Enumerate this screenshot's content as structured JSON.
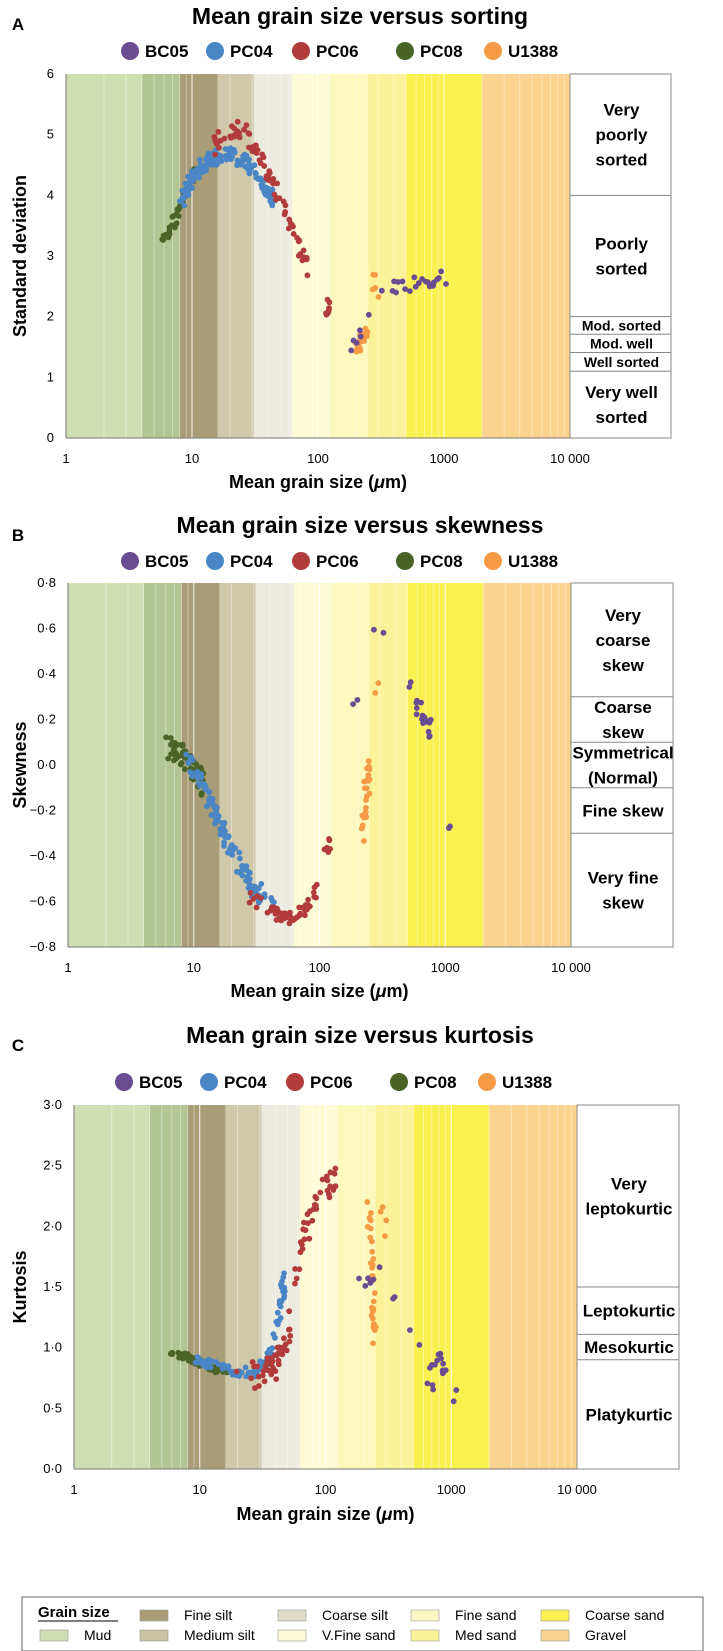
{
  "series_colors": {
    "BC05": "#6a4c93",
    "PC04": "#4a86c5",
    "PC06": "#b23b3b",
    "PC08": "#4a6428",
    "U1388": "#f59a45"
  },
  "legend_series": [
    "BC05",
    "PC04",
    "PC06",
    "PC08",
    "U1388"
  ],
  "x_axis": {
    "label_prefix": "Mean grain size (",
    "label_mu": "μ",
    "label_suffix": "m)",
    "ticks": [
      "1",
      "10",
      "100",
      "1000",
      "10 000"
    ]
  },
  "band_colors": [
    "#d0dfb2",
    "#b3c592",
    "#a89d76",
    "#cfc8ab",
    "#edebe0",
    "#fdfbd5",
    "#fcf8be",
    "#fbf29a",
    "#faf050",
    "#fad38f"
  ],
  "chart_data": [
    {
      "type": "scatter",
      "panel": "A",
      "title": "Mean grain size versus sorting",
      "xlabel": "Mean grain size (μm)",
      "ylabel": "Standard deviation",
      "x_scale": "log",
      "xlim": [
        1,
        10000
      ],
      "ylim": [
        0,
        6
      ],
      "y_ticks": [
        "0",
        "1",
        "2",
        "3",
        "4",
        "5",
        "6"
      ],
      "classes": [
        {
          "name": "Very poorly sorted",
          "lines": [
            "Very",
            "poorly",
            "sorted"
          ],
          "from": 4,
          "to": 6
        },
        {
          "name": "Poorly sorted",
          "lines": [
            "Poorly",
            "sorted"
          ],
          "from": 2,
          "to": 4
        },
        {
          "name": "Mod. sorted",
          "lines": [
            "Mod. sorted"
          ],
          "from": 1.71,
          "to": 2
        },
        {
          "name": "Mod. well",
          "lines": [
            "Mod. well"
          ],
          "from": 1.41,
          "to": 1.71
        },
        {
          "name": "Well sorted",
          "lines": [
            "Well sorted"
          ],
          "from": 1.1,
          "to": 1.41
        },
        {
          "name": "Very well sorted",
          "lines": [
            "Very well",
            "sorted"
          ],
          "from": 0,
          "to": 1.1
        }
      ],
      "series": [
        {
          "name": "PC08",
          "trend": [
            [
              6,
              3.3
            ],
            [
              7,
              3.5
            ],
            [
              8,
              3.8
            ],
            [
              9,
              4.05
            ],
            [
              10,
              4.3
            ],
            [
              11,
              4.4
            ]
          ],
          "spread": 0.08,
          "n": 55
        },
        {
          "name": "PC04",
          "trend": [
            [
              8,
              3.8
            ],
            [
              10,
              4.3
            ],
            [
              13,
              4.55
            ],
            [
              18,
              4.7
            ],
            [
              25,
              4.6
            ],
            [
              35,
              4.2
            ],
            [
              45,
              3.9
            ]
          ],
          "spread": 0.12,
          "n": 150
        },
        {
          "name": "PC06",
          "trend": [
            [
              15,
              4.8
            ],
            [
              20,
              5.1
            ],
            [
              27,
              5.0
            ],
            [
              35,
              4.7
            ],
            [
              45,
              4.1
            ],
            [
              55,
              3.7
            ],
            [
              70,
              3.2
            ],
            [
              85,
              2.7
            ]
          ],
          "spread": 0.16,
          "n": 75
        },
        {
          "name": "PC06",
          "trend": [
            [
              115,
              1.9
            ],
            [
              120,
              2.1
            ],
            [
              125,
              2.25
            ]
          ],
          "spread": 0.08,
          "n": 8
        },
        {
          "name": "U1388",
          "trend": [
            [
              200,
              1.45
            ],
            [
              215,
              1.55
            ],
            [
              230,
              1.7
            ],
            [
              250,
              1.75
            ]
          ],
          "spread": 0.12,
          "n": 28
        },
        {
          "name": "U1388",
          "trend": [
            [
              270,
              2.8
            ],
            [
              300,
              2.35
            ]
          ],
          "spread": 0.25,
          "n": 5
        },
        {
          "name": "BC05",
          "trend": [
            [
              180,
              1.48
            ],
            [
              330,
              2.45
            ],
            [
              500,
              2.45
            ],
            [
              650,
              2.55
            ],
            [
              800,
              2.6
            ],
            [
              1000,
              2.6
            ]
          ],
          "spread": 0.15,
          "n": 28
        }
      ]
    },
    {
      "type": "scatter",
      "panel": "B",
      "title": "Mean grain size versus skewness",
      "xlabel": "Mean grain size (μm)",
      "ylabel": "Skewness",
      "x_scale": "log",
      "xlim": [
        1,
        10000
      ],
      "ylim": [
        -0.8,
        0.8
      ],
      "y_ticks": [
        "−0·8",
        "−0·6",
        "−0·4",
        "−0·2",
        "0·0",
        "0·2",
        "0·4",
        "0·6",
        "0·8"
      ],
      "classes": [
        {
          "name": "Very coarse skew",
          "lines": [
            "Very",
            "coarse",
            "skew"
          ],
          "from": 0.3,
          "to": 0.8
        },
        {
          "name": "Coarse skew",
          "lines": [
            "Coarse",
            "skew"
          ],
          "from": 0.1,
          "to": 0.3
        },
        {
          "name": "Symmetrical (Normal)",
          "lines": [
            "Symmetrical",
            "(Normal)"
          ],
          "from": -0.1,
          "to": 0.1
        },
        {
          "name": "Fine skew",
          "lines": [
            "Fine skew"
          ],
          "from": -0.3,
          "to": -0.1
        },
        {
          "name": "Very fine skew",
          "lines": [
            "Very fine",
            "skew"
          ],
          "from": -0.8,
          "to": -0.3
        }
      ],
      "series": [
        {
          "name": "PC08",
          "trend": [
            [
              6,
              0.08
            ],
            [
              8,
              0.05
            ],
            [
              10,
              -0.02
            ],
            [
              12,
              -0.1
            ]
          ],
          "spread": 0.05,
          "n": 60
        },
        {
          "name": "PC04",
          "trend": [
            [
              9,
              0.02
            ],
            [
              12,
              -0.1
            ],
            [
              16,
              -0.25
            ],
            [
              22,
              -0.42
            ],
            [
              30,
              -0.55
            ],
            [
              45,
              -0.6
            ]
          ],
          "spread": 0.04,
          "n": 110
        },
        {
          "name": "PC06",
          "trend": [
            [
              28,
              -0.58
            ],
            [
              40,
              -0.64
            ],
            [
              55,
              -0.67
            ],
            [
              75,
              -0.64
            ],
            [
              95,
              -0.55
            ]
          ],
          "spread": 0.03,
          "n": 50
        },
        {
          "name": "PC06",
          "trend": [
            [
              110,
              -0.4
            ],
            [
              120,
              -0.33
            ]
          ],
          "spread": 0.03,
          "n": 6
        },
        {
          "name": "U1388",
          "trend": [
            [
              220,
              -0.3
            ],
            [
              230,
              -0.15
            ],
            [
              240,
              0.0
            ],
            [
              250,
              -0.1
            ]
          ],
          "spread": 0.07,
          "n": 24
        },
        {
          "name": "U1388",
          "trend": [
            [
              250,
              0.28
            ],
            [
              310,
              0.38
            ]
          ],
          "spread": 0.02,
          "n": 2
        },
        {
          "name": "BC05",
          "trend": [
            [
              500,
              0.38
            ],
            [
              600,
              0.26
            ],
            [
              700,
              0.2
            ],
            [
              800,
              0.12
            ]
          ],
          "spread": 0.03,
          "n": 20
        },
        {
          "name": "BC05",
          "trend": [
            [
              270,
              0.6
            ],
            [
              330,
              0.59
            ]
          ],
          "spread": 0.01,
          "n": 2
        },
        {
          "name": "BC05",
          "trend": [
            [
              1000,
              -0.31
            ],
            [
              1100,
              -0.27
            ]
          ],
          "spread": 0.01,
          "n": 2
        },
        {
          "name": "BC05",
          "trend": [
            [
              180,
              0.27
            ],
            [
              200,
              0.3
            ]
          ],
          "spread": 0.01,
          "n": 2
        }
      ]
    },
    {
      "type": "scatter",
      "panel": "C",
      "title": "Mean grain size versus kurtosis",
      "xlabel": "Mean grain size (μm)",
      "ylabel": "Kurtosis",
      "x_scale": "log",
      "xlim": [
        1,
        10000
      ],
      "ylim": [
        0,
        3
      ],
      "y_ticks": [
        "0·0",
        "0·5",
        "1·0",
        "1·5",
        "2·0",
        "2·5",
        "3·0"
      ],
      "classes": [
        {
          "name": "Very leptokurtic",
          "lines": [
            "Very",
            "leptokurtic"
          ],
          "from": 1.5,
          "to": 3
        },
        {
          "name": "Leptokurtic",
          "lines": [
            "Leptokurtic"
          ],
          "from": 1.11,
          "to": 1.5
        },
        {
          "name": "Mesokurtic",
          "lines": [
            "Mesokurtic"
          ],
          "from": 0.9,
          "to": 1.11
        },
        {
          "name": "Platykurtic",
          "lines": [
            "Platykurtic"
          ],
          "from": 0,
          "to": 0.9
        }
      ],
      "series": [
        {
          "name": "PC08",
          "trend": [
            [
              6,
              0.97
            ],
            [
              8,
              0.92
            ],
            [
              10,
              0.87
            ],
            [
              13,
              0.83
            ],
            [
              16,
              0.81
            ]
          ],
          "spread": 0.03,
          "n": 60
        },
        {
          "name": "PC04",
          "trend": [
            [
              9,
              0.9
            ],
            [
              14,
              0.85
            ],
            [
              20,
              0.8
            ],
            [
              28,
              0.8
            ],
            [
              35,
              0.9
            ],
            [
              42,
              1.2
            ],
            [
              48,
              1.6
            ]
          ],
          "spread": 0.04,
          "n": 90
        },
        {
          "name": "PC06",
          "trend": [
            [
              20,
              0.74
            ],
            [
              30,
              0.78
            ],
            [
              40,
              0.85
            ],
            [
              50,
              1.1
            ],
            [
              60,
              1.7
            ],
            [
              75,
              2.1
            ],
            [
              95,
              2.3
            ],
            [
              120,
              2.4
            ]
          ],
          "spread": 0.12,
          "n": 80
        },
        {
          "name": "U1388",
          "trend": [
            [
              220,
              2.1
            ],
            [
              230,
              1.9
            ],
            [
              240,
              1.3
            ],
            [
              250,
              1.05
            ]
          ],
          "spread": 0.14,
          "n": 30
        },
        {
          "name": "U1388",
          "trend": [
            [
              280,
              2.3
            ],
            [
              300,
              1.8
            ]
          ],
          "spread": 0.15,
          "n": 4
        },
        {
          "name": "BC05",
          "trend": [
            [
              170,
              1.55
            ],
            [
              280,
              1.6
            ],
            [
              500,
              1.05
            ],
            [
              650,
              0.9
            ],
            [
              800,
              0.9
            ],
            [
              900,
              0.8
            ]
          ],
          "spread": 0.08,
          "n": 22
        },
        {
          "name": "BC05",
          "trend": [
            [
              600,
              0.7
            ],
            [
              800,
              0.65
            ],
            [
              1000,
              0.5
            ],
            [
              1150,
              0.7
            ]
          ],
          "spread": 0.03,
          "n": 5
        }
      ]
    }
  ],
  "grain_size_legend": {
    "heading": "Grain size",
    "items": [
      {
        "label": "Mud",
        "color": "#d0dfb2"
      },
      {
        "label": "Fine silt",
        "color": "#a89d76"
      },
      {
        "label": "Medium silt",
        "color": "#c8c2a4"
      },
      {
        "label": "Coarse silt",
        "color": "#dedbc8"
      },
      {
        "label": "V.Fine sand",
        "color": "#fdfbd5"
      },
      {
        "label": "Fine sand",
        "color": "#fcf8c6"
      },
      {
        "label": "Med sand",
        "color": "#fbf29a"
      },
      {
        "label": "Coarse sand",
        "color": "#faf050"
      },
      {
        "label": "Gravel",
        "color": "#fad38f"
      }
    ]
  }
}
